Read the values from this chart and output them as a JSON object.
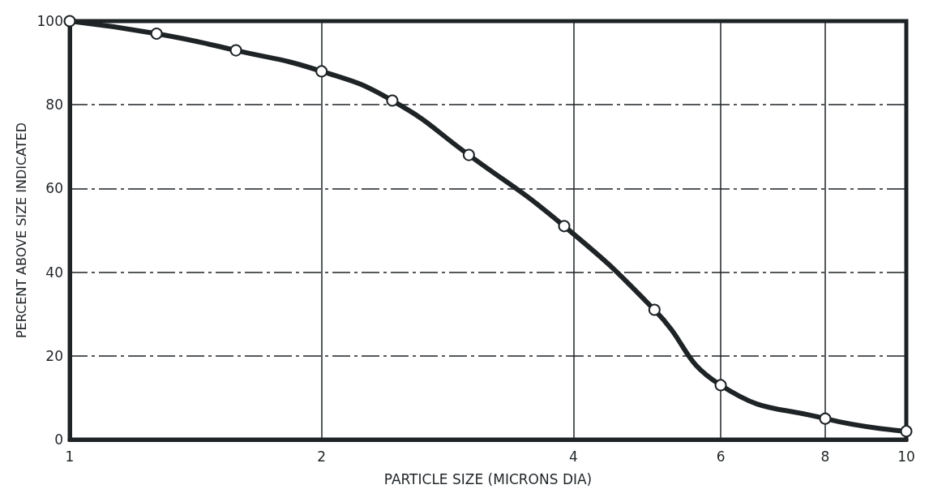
{
  "chart_data": {
    "type": "line",
    "xlabel": "PARTICLE SIZE (MICRONS DIA)",
    "ylabel": "PERCENT ABOVE SIZE INDICATED",
    "x": [
      1,
      1.27,
      1.58,
      2,
      2.43,
      3,
      3.9,
      5,
      6,
      8,
      10
    ],
    "series": [
      {
        "color": "#1e2326",
        "values": [
          100,
          97,
          93,
          88,
          81,
          68,
          51,
          31,
          13,
          5,
          2
        ]
      }
    ],
    "log": "x",
    "xlim": [
      1,
      10
    ],
    "xticks": [
      1,
      2,
      4,
      6,
      8,
      10
    ],
    "ylim": [
      0,
      100
    ],
    "yticks": [
      0,
      20,
      40,
      60,
      80,
      100
    ],
    "grid": true,
    "marker": "circle",
    "line_style": "solid"
  }
}
